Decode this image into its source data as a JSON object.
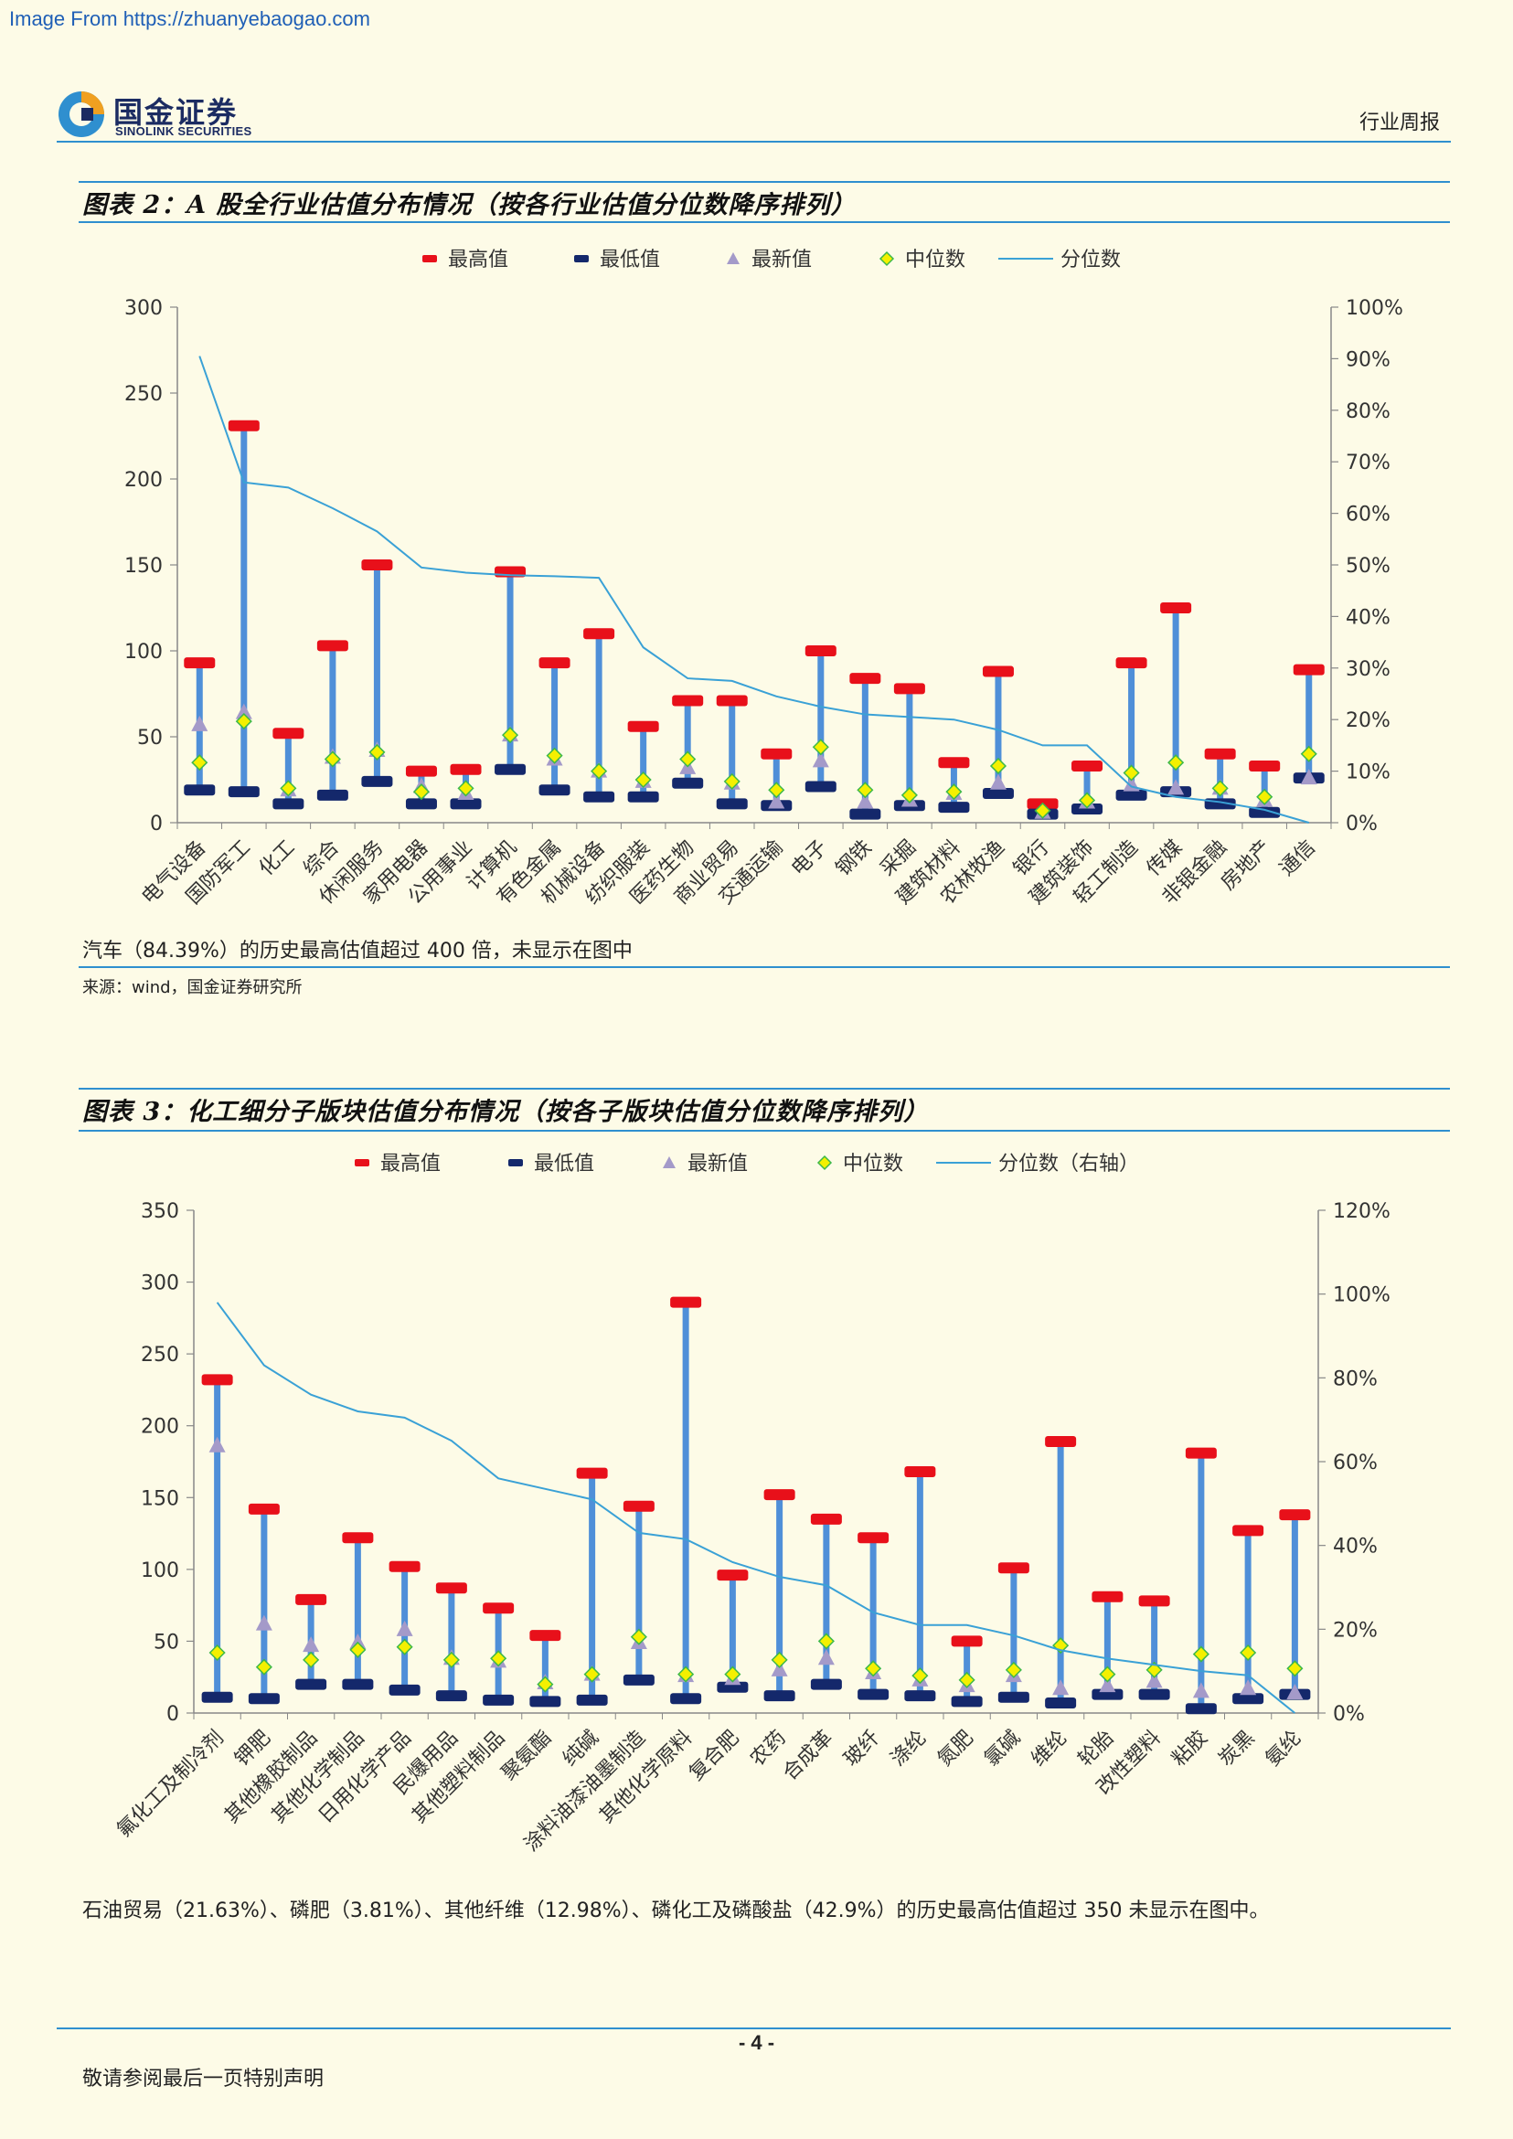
{
  "watermark": "Image From https://zhuanyebaogao.com",
  "header": {
    "logo_cn": "国金证券",
    "logo_en": "SINOLINK SECURITIES",
    "doc_type": "行业周报",
    "logo_color": "#1b2b62",
    "logo_accent": "#2f8fcf"
  },
  "colors": {
    "max_marker": "#e8101a",
    "min_marker": "#14286b",
    "latest_marker": "#a49ac9",
    "median_fill": "#f4f000",
    "median_stroke": "#3db84a",
    "bar": "#4f8fd8",
    "line": "#3aa1d6",
    "rule": "#2f8fcf"
  },
  "figures": [
    {
      "title": "图表 2：A 股全行业估值分布情况（按各行业估值分位数降序排列）",
      "note": "汽车（84.39%）的历史最高估值超过 400 倍，未显示在图中",
      "source": "来源：wind，国金证券研究所"
    },
    {
      "title": "图表 3：化工细分子版块估值分布情况（按各子版块估值分位数降序排列）",
      "note": "石油贸易（21.63%）、磷肥（3.81%）、其他纤维（12.98%）、磷化工及磷酸盐（42.9%）的历史最高估值超过 350 未显示在图中。"
    }
  ],
  "chart_data": [
    {
      "type": "range-bar-with-line",
      "legend": [
        "最高值",
        "最低值",
        "最新值",
        "中位数",
        "分位数"
      ],
      "legend_position": "top",
      "grid": false,
      "ylim": [
        0,
        300
      ],
      "yticks": [
        0,
        50,
        100,
        150,
        200,
        250,
        300
      ],
      "y2lim": [
        0,
        100
      ],
      "y2ticks": [
        "0%",
        "10%",
        "20%",
        "30%",
        "40%",
        "50%",
        "60%",
        "70%",
        "80%",
        "90%",
        "100%"
      ],
      "categories": [
        "电气设备",
        "国防军工",
        "化工",
        "综合",
        "休闲服务",
        "家用电器",
        "公用事业",
        "计算机",
        "有色金属",
        "机械设备",
        "纺织服装",
        "医药生物",
        "商业贸易",
        "交通运输",
        "电子",
        "钢铁",
        "采掘",
        "建筑材料",
        "农林牧渔",
        "银行",
        "建筑装饰",
        "轻工制造",
        "传媒",
        "非银金融",
        "房地产",
        "通信"
      ],
      "max": [
        93,
        231,
        52,
        103,
        150,
        30,
        31,
        146,
        93,
        110,
        56,
        71,
        71,
        40,
        100,
        84,
        78,
        35,
        88,
        11,
        33,
        93,
        125,
        40,
        33,
        89
      ],
      "min": [
        19,
        18,
        11,
        16,
        24,
        11,
        11,
        31,
        19,
        15,
        15,
        23,
        11,
        10,
        21,
        5,
        10,
        9,
        17,
        5,
        8,
        16,
        18,
        11,
        6,
        26
      ],
      "latest": [
        57,
        64,
        19,
        38,
        42,
        21,
        17,
        51,
        37,
        30,
        24,
        32,
        23,
        12,
        36,
        12,
        13,
        17,
        23,
        6,
        12,
        22,
        20,
        20,
        13,
        26
      ],
      "median": [
        35,
        59,
        20,
        37,
        41,
        18,
        20,
        51,
        39,
        30,
        25,
        37,
        24,
        19,
        44,
        19,
        16,
        18,
        33,
        7,
        13,
        29,
        35,
        20,
        15,
        40
      ],
      "percentile": [
        90.5,
        66,
        65,
        61,
        56.5,
        49.5,
        48.5,
        48,
        47.8,
        47.5,
        34,
        28,
        27.5,
        24.5,
        22.5,
        21,
        20.5,
        20,
        18,
        15,
        15,
        7,
        5,
        4,
        2.5,
        0
      ]
    },
    {
      "type": "range-bar-with-line",
      "legend": [
        "最高值",
        "最低值",
        "最新值",
        "中位数",
        "分位数（右轴）"
      ],
      "legend_position": "top",
      "grid": false,
      "ylim": [
        0,
        350
      ],
      "yticks": [
        0,
        50,
        100,
        150,
        200,
        250,
        300,
        350
      ],
      "y2lim": [
        0,
        120
      ],
      "y2ticks": [
        "0%",
        "20%",
        "40%",
        "60%",
        "80%",
        "100%",
        "120%"
      ],
      "categories": [
        "氟化工及制冷剂",
        "钾肥",
        "其他橡胶制品",
        "其他化学制品",
        "日用化学产品",
        "民爆用品",
        "其他塑料制品",
        "聚氨酯",
        "纯碱",
        "涂料油漆油墨制造",
        "其他化学原料",
        "复合肥",
        "农药",
        "合成革",
        "玻纤",
        "涤纶",
        "氮肥",
        "氯碱",
        "维纶",
        "轮胎",
        "改性塑料",
        "粘胶",
        "炭黑",
        "氨纶"
      ],
      "max": [
        232,
        142,
        79,
        122,
        102,
        87,
        73,
        54,
        167,
        144,
        286,
        96,
        152,
        135,
        122,
        168,
        50,
        101,
        189,
        81,
        78,
        181,
        127,
        138
      ],
      "min": [
        11,
        10,
        20,
        20,
        16,
        12,
        9,
        8,
        9,
        23,
        10,
        18,
        12,
        20,
        13,
        12,
        8,
        11,
        7,
        13,
        13,
        3,
        10,
        13
      ],
      "latest": [
        186,
        62,
        47,
        49,
        58,
        38,
        36,
        21,
        27,
        49,
        26,
        24,
        30,
        38,
        28,
        23,
        19,
        26,
        17,
        19,
        22,
        15,
        17,
        14
      ],
      "median": [
        42,
        32,
        37,
        44,
        46,
        37,
        38,
        20,
        27,
        53,
        27,
        27,
        37,
        50,
        31,
        26,
        23,
        30,
        47,
        27,
        30,
        41,
        42,
        31
      ],
      "percentile": [
        98,
        83,
        76,
        72,
        70.5,
        65,
        56,
        53.5,
        51,
        43,
        41.5,
        36,
        32.5,
        30.5,
        24,
        21,
        21,
        18.5,
        15,
        13,
        11.5,
        10,
        9,
        0
      ]
    }
  ],
  "footer": {
    "page": "- 4 -",
    "note": "敬请参阅最后一页特别声明"
  }
}
